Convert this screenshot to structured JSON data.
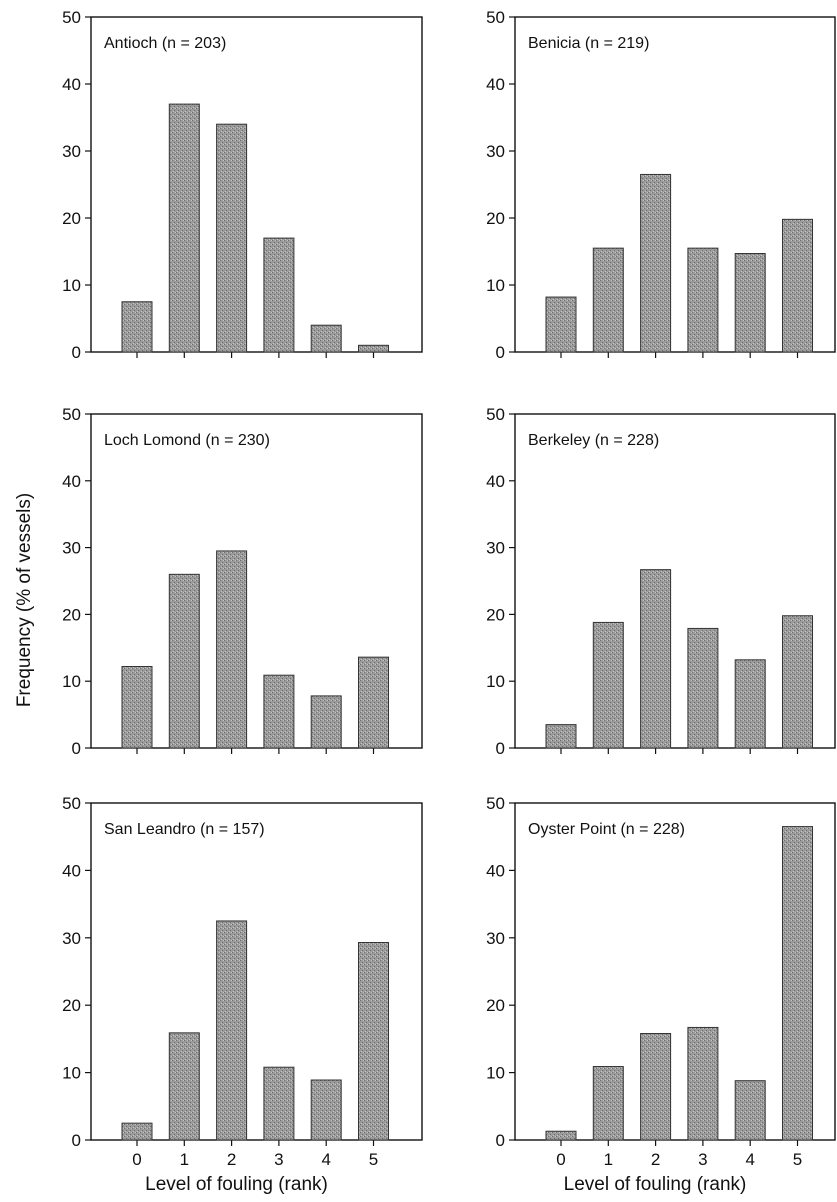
{
  "figure": {
    "ylabel": "Frequency (% of vessels)",
    "xlabel": "Level of fouling (rank)"
  },
  "chart_data": [
    {
      "type": "bar",
      "title": "Antioch (n = 203)",
      "categories": [
        "0",
        "1",
        "2",
        "3",
        "4",
        "5"
      ],
      "values": [
        7.5,
        37,
        34,
        17,
        4,
        1
      ],
      "ylim": [
        0,
        50
      ],
      "yticks": [
        "0",
        "10",
        "20",
        "30",
        "40",
        "50"
      ],
      "xlabel": "",
      "ylabel": "Frequency (% of vessels)"
    },
    {
      "type": "bar",
      "title": "Benicia (n = 219)",
      "categories": [
        "0",
        "1",
        "2",
        "3",
        "4",
        "5"
      ],
      "values": [
        8.2,
        15.5,
        26.5,
        15.5,
        14.7,
        19.8
      ],
      "ylim": [
        0,
        50
      ],
      "yticks": [
        "0",
        "10",
        "20",
        "30",
        "40",
        "50"
      ],
      "xlabel": "",
      "ylabel": ""
    },
    {
      "type": "bar",
      "title": "Loch Lomond (n = 230)",
      "categories": [
        "0",
        "1",
        "2",
        "3",
        "4",
        "5"
      ],
      "values": [
        12.2,
        26,
        29.5,
        10.9,
        7.8,
        13.6
      ],
      "ylim": [
        0,
        50
      ],
      "yticks": [
        "0",
        "10",
        "20",
        "30",
        "40",
        "50"
      ],
      "xlabel": "",
      "ylabel": "Frequency (% of vessels)"
    },
    {
      "type": "bar",
      "title": "Berkeley (n = 228)",
      "categories": [
        "0",
        "1",
        "2",
        "3",
        "4",
        "5"
      ],
      "values": [
        3.5,
        18.8,
        26.7,
        17.9,
        13.2,
        19.8
      ],
      "ylim": [
        0,
        50
      ],
      "yticks": [
        "0",
        "10",
        "20",
        "30",
        "40",
        "50"
      ],
      "xlabel": "",
      "ylabel": ""
    },
    {
      "type": "bar",
      "title": "San Leandro (n = 157)",
      "categories": [
        "0",
        "1",
        "2",
        "3",
        "4",
        "5"
      ],
      "values": [
        2.5,
        15.9,
        32.5,
        10.8,
        8.9,
        29.3
      ],
      "ylim": [
        0,
        50
      ],
      "yticks": [
        "0",
        "10",
        "20",
        "30",
        "40",
        "50"
      ],
      "xlabel": "Level of fouling (rank)",
      "ylabel": "Frequency (% of vessels)"
    },
    {
      "type": "bar",
      "title": "Oyster Point (n = 228)",
      "categories": [
        "0",
        "1",
        "2",
        "3",
        "4",
        "5"
      ],
      "values": [
        1.3,
        10.9,
        15.8,
        16.7,
        8.8,
        46.5
      ],
      "ylim": [
        0,
        50
      ],
      "yticks": [
        "0",
        "10",
        "20",
        "30",
        "40",
        "50"
      ],
      "xlabel": "Level of fouling (rank)",
      "ylabel": ""
    }
  ]
}
